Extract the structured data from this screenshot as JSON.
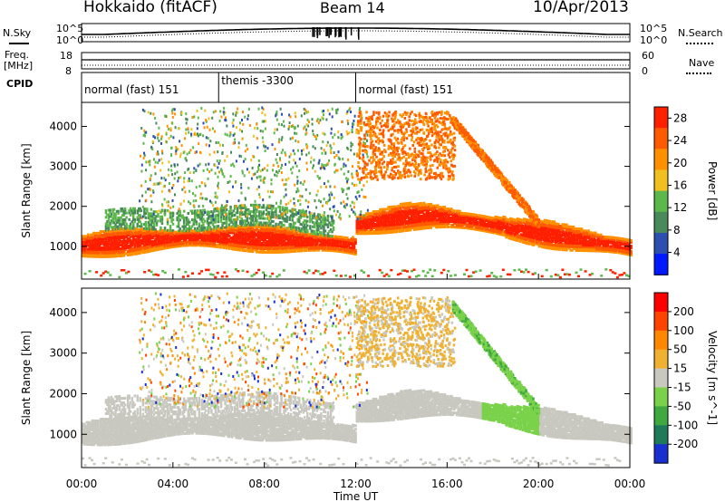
{
  "header": {
    "station": "Hokkaido (fitACF)",
    "beam": "Beam 14",
    "date": "10/Apr/2013"
  },
  "noise_panel": {
    "left_label": "N.Sky",
    "right_label": "N.Search",
    "left_ticks": [
      "10^5",
      "10^0"
    ],
    "right_ticks": [
      "10^5",
      "10^0"
    ]
  },
  "freq_panel": {
    "left_label_1": "Freq.",
    "left_label_2": "[MHz]",
    "right_label": "Nave",
    "left_ticks": [
      "18",
      "8"
    ],
    "right_ticks": [
      "60",
      "0"
    ]
  },
  "cpid_panel": {
    "label": "CPID",
    "segments": [
      {
        "name": "normal (fast) 151",
        "start_hour": 0,
        "end_hour": 6
      },
      {
        "name": "themis -3300",
        "start_hour": 6,
        "end_hour": 12
      },
      {
        "name": "normal (fast) 151",
        "start_hour": 12,
        "end_hour": 24
      }
    ]
  },
  "colors": {
    "power_scale": [
      "#0019ff",
      "#2d4fb0",
      "#4a8a5a",
      "#5cb84a",
      "#f0c020",
      "#ff9000",
      "#ff5a00",
      "#ff2000"
    ],
    "velocity_scale": [
      "#1a2fd0",
      "#1f7a5a",
      "#3fa83f",
      "#7ad24a",
      "#c8c8c0",
      "#f0b030",
      "#ff8800",
      "#ff4400",
      "#ff0000"
    ]
  },
  "chart_data": [
    {
      "type": "heatmap",
      "panel": "power",
      "title": "",
      "xlabel": "Time UT",
      "ylabel": "Slant Range [km]",
      "x_ticks": [
        "00:00",
        "04:00",
        "08:00",
        "12:00",
        "16:00",
        "20:00",
        "00:00"
      ],
      "xlim_hours": [
        0,
        24
      ],
      "y_ticks": [
        1000,
        2000,
        3000,
        4000
      ],
      "ylim": [
        180,
        4600
      ],
      "colorbar_label": "Power [dB]",
      "colorbar_ticks": [
        4,
        8,
        12,
        16,
        20,
        24,
        28
      ],
      "colorbar_range": [
        0,
        30
      ]
    },
    {
      "type": "heatmap",
      "panel": "velocity",
      "title": "",
      "xlabel": "Time UT",
      "ylabel": "Slant Range [km]",
      "x_ticks": [
        "00:00",
        "04:00",
        "08:00",
        "12:00",
        "16:00",
        "20:00",
        "00:00"
      ],
      "xlim_hours": [
        0,
        24
      ],
      "y_ticks": [
        1000,
        2000,
        3000,
        4000
      ],
      "ylim": [
        180,
        4600
      ],
      "colorbar_label": "Velocity [m s^-1]",
      "colorbar_ticks": [
        200,
        100,
        50,
        15,
        -15,
        -50,
        -100,
        -200
      ]
    }
  ]
}
